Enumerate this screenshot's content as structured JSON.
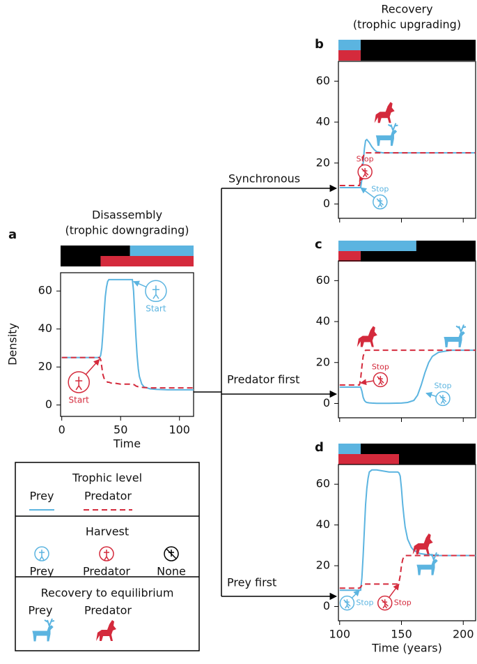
{
  "chart_data": [
    {
      "type": "line",
      "panel": "a",
      "title": [
        "Disassembly",
        "(trophic downgrading)"
      ],
      "xlabel": "Time",
      "ylabel": "Density",
      "x": [
        0,
        10,
        20,
        30,
        32,
        33,
        34,
        35,
        36,
        37,
        38,
        39,
        40,
        42,
        45,
        50,
        55,
        58,
        59,
        60,
        61,
        62,
        63,
        64,
        65,
        66,
        68,
        70,
        75,
        80,
        90,
        100,
        112
      ],
      "series": [
        {
          "name": "Prey",
          "color": "#5bb4e0",
          "dash": false,
          "values": [
            25,
            25,
            25,
            25,
            25,
            26,
            30,
            38,
            48,
            57,
            62,
            65,
            66,
            66,
            66,
            66,
            66,
            66,
            66,
            66,
            60,
            48,
            36,
            26,
            19,
            15,
            11,
            9.5,
            8.5,
            8.2,
            8,
            8,
            8
          ]
        },
        {
          "name": "Predator",
          "color": "#d42a3c",
          "dash": true,
          "values": [
            25,
            25,
            25,
            25,
            25,
            24,
            20,
            16,
            14,
            13,
            12.5,
            12,
            12,
            11.5,
            11.5,
            11,
            11,
            11,
            11,
            11,
            10.8,
            10.5,
            10,
            9.8,
            9.6,
            9.5,
            9.3,
            9.2,
            9,
            9,
            9,
            9,
            9
          ]
        }
      ],
      "xlim": [
        -1,
        112
      ],
      "ylim": [
        -6,
        70
      ],
      "xticks": [
        0,
        50,
        100
      ],
      "yticks": [
        0,
        20,
        40,
        60
      ],
      "xtick_labels": true,
      "harvest": [
        {
          "switch": 58,
          "colors": [
            "#000000",
            "#5bb4e0"
          ]
        },
        {
          "switch": 33,
          "colors": [
            "#000000",
            "#d42a3c"
          ]
        }
      ],
      "annotations": [
        {
          "text": "Start",
          "color": "#5bb4e0",
          "x": 80,
          "y": 60,
          "target": [
            61,
            65
          ],
          "label": "below",
          "size": "large"
        },
        {
          "text": "Start",
          "color": "#d42a3c",
          "x": 14.5,
          "y": 12,
          "target": [
            32,
            24
          ],
          "label": "below",
          "size": "large"
        }
      ]
    },
    {
      "type": "line",
      "panel": "b",
      "title": [
        "Recovery",
        "(trophic upgrading)"
      ],
      "x": [
        100,
        105,
        110,
        115,
        116,
        117,
        118,
        119,
        120,
        121,
        122,
        124,
        126,
        128,
        130,
        135,
        140,
        150,
        160,
        180,
        200,
        210
      ],
      "series": [
        {
          "color": "#5bb4e0",
          "dash": false,
          "values": [
            8,
            8,
            8,
            8,
            8,
            8,
            12,
            20,
            27,
            31,
            31.5,
            30,
            28,
            26.5,
            25.5,
            25,
            25,
            25,
            25,
            25,
            25,
            25
          ]
        },
        {
          "color": "#d42a3c",
          "dash": true,
          "values": [
            9,
            9,
            9,
            9,
            9,
            12,
            18,
            23,
            25,
            25,
            25,
            25,
            25,
            25,
            25,
            25,
            25,
            25,
            25,
            25,
            25,
            25
          ]
        }
      ],
      "xlim": [
        99,
        210
      ],
      "ylim": [
        -7,
        70
      ],
      "xticks": [
        100,
        150,
        200
      ],
      "yticks": [
        0,
        20,
        40,
        60
      ],
      "xtick_labels": false,
      "harvest": [
        {
          "switch": 117,
          "colors": [
            "#5bb4e0",
            "#000000"
          ]
        },
        {
          "switch": 117,
          "colors": [
            "#d42a3c",
            "#000000"
          ]
        }
      ],
      "annotations": [
        {
          "text": "Stop",
          "color": "#d42a3c",
          "x": 120.5,
          "y": 15.7,
          "target": [
            116,
            11
          ],
          "label": "above",
          "size": "small"
        },
        {
          "text": "Stop",
          "color": "#5bb4e0",
          "x": 132.7,
          "y": 1,
          "target": [
            117,
            8
          ],
          "label": "above",
          "size": "small"
        }
      ],
      "animals": [
        {
          "kind": "wolf",
          "x": 136,
          "y": 44
        },
        {
          "kind": "elk",
          "x": 137,
          "y": 33
        }
      ]
    },
    {
      "type": "line",
      "panel": "c",
      "x": [
        100,
        105,
        110,
        115,
        116,
        117,
        118,
        119,
        120,
        121,
        122,
        124,
        126,
        130,
        140,
        150,
        155,
        160,
        163,
        166,
        169,
        172,
        175,
        180,
        190,
        200,
        210
      ],
      "series": [
        {
          "color": "#5bb4e0",
          "dash": false,
          "values": [
            8,
            8,
            8,
            8,
            8,
            8,
            6,
            3,
            1.5,
            0.8,
            0.5,
            0.3,
            0.2,
            0.1,
            0.1,
            0.2,
            0.5,
            1.5,
            4,
            9,
            15,
            20,
            23,
            25,
            26,
            26,
            26
          ]
        },
        {
          "color": "#d42a3c",
          "dash": true,
          "values": [
            9,
            9,
            9,
            9,
            9,
            12,
            18,
            23,
            25,
            26,
            26,
            26,
            26,
            26,
            26,
            26,
            26,
            26,
            26,
            26,
            26,
            26,
            26,
            26,
            26,
            26,
            26
          ]
        }
      ],
      "xlim": [
        99,
        210
      ],
      "ylim": [
        -7,
        70
      ],
      "xticks": [
        100,
        150,
        200
      ],
      "yticks": [
        0,
        20,
        40,
        60
      ],
      "xtick_labels": false,
      "harvest": [
        {
          "switch": 162,
          "colors": [
            "#5bb4e0",
            "#000000"
          ]
        },
        {
          "switch": 117,
          "colors": [
            "#d42a3c",
            "#000000"
          ]
        }
      ],
      "annotations": [
        {
          "text": "Stop",
          "color": "#d42a3c",
          "x": 133,
          "y": 11.6,
          "target": [
            117,
            10
          ],
          "label": "above",
          "size": "small"
        },
        {
          "text": "Stop",
          "color": "#5bb4e0",
          "x": 183.5,
          "y": 2.4,
          "target": [
            170,
            5
          ],
          "label": "above",
          "size": "small"
        }
      ],
      "animals": [
        {
          "kind": "wolf",
          "x": 122,
          "y": 32
        },
        {
          "kind": "elk",
          "x": 192,
          "y": 32
        }
      ]
    },
    {
      "type": "line",
      "panel": "d",
      "xlabel": "Time (years)",
      "x": [
        100,
        105,
        110,
        115,
        116,
        117,
        118,
        119,
        120,
        121,
        122,
        123,
        124,
        126,
        130,
        140,
        145,
        147,
        148,
        149,
        150,
        151,
        152,
        153,
        155,
        158,
        160,
        165,
        170,
        180,
        200,
        210
      ],
      "series": [
        {
          "color": "#5bb4e0",
          "dash": false,
          "values": [
            8,
            8,
            8,
            8,
            8,
            8,
            14,
            25,
            38,
            50,
            58,
            63,
            66,
            67,
            67,
            66,
            66,
            66,
            65.5,
            64,
            58,
            50,
            44,
            39,
            33,
            29,
            27.5,
            26,
            25.5,
            25,
            25,
            25
          ]
        },
        {
          "color": "#d42a3c",
          "dash": true,
          "values": [
            9,
            9,
            9,
            9,
            9,
            9.5,
            10.5,
            11,
            11,
            11,
            11,
            11,
            11,
            11,
            11,
            11,
            11,
            11,
            12,
            15,
            20,
            23,
            24.5,
            25,
            25,
            25,
            25,
            25,
            25,
            25,
            25,
            25
          ]
        }
      ],
      "xlim": [
        99,
        210
      ],
      "ylim": [
        -7,
        70
      ],
      "xticks": [
        100,
        150,
        200
      ],
      "yticks": [
        0,
        20,
        40,
        60
      ],
      "xtick_labels": true,
      "harvest": [
        {
          "switch": 117,
          "colors": [
            "#5bb4e0",
            "#000000"
          ]
        },
        {
          "switch": 148,
          "colors": [
            "#d42a3c",
            "#000000"
          ]
        }
      ],
      "annotations": [
        {
          "text": "Stop",
          "color": "#5bb4e0",
          "x": 106,
          "y": 1.7,
          "target": [
            116,
            8
          ],
          "label": "right",
          "size": "small"
        },
        {
          "text": "Stop",
          "color": "#d42a3c",
          "x": 136.6,
          "y": 1.7,
          "target": [
            148,
            11
          ],
          "label": "right",
          "size": "small"
        }
      ],
      "animals": [
        {
          "kind": "wolf",
          "x": 167,
          "y": 30
        },
        {
          "kind": "elk",
          "x": 170,
          "y": 20
        }
      ]
    }
  ],
  "flow": [
    "Synchronous",
    "Predator first",
    "Prey first"
  ],
  "legend": {
    "trophic_title": "Trophic level",
    "harvest_title": "Harvest",
    "harvest_labels": [
      "Prey",
      "Predator",
      "None"
    ],
    "recovery_title": "Recovery to equilibrium",
    "recovery_labels": [
      "Prey",
      "Predator"
    ]
  }
}
